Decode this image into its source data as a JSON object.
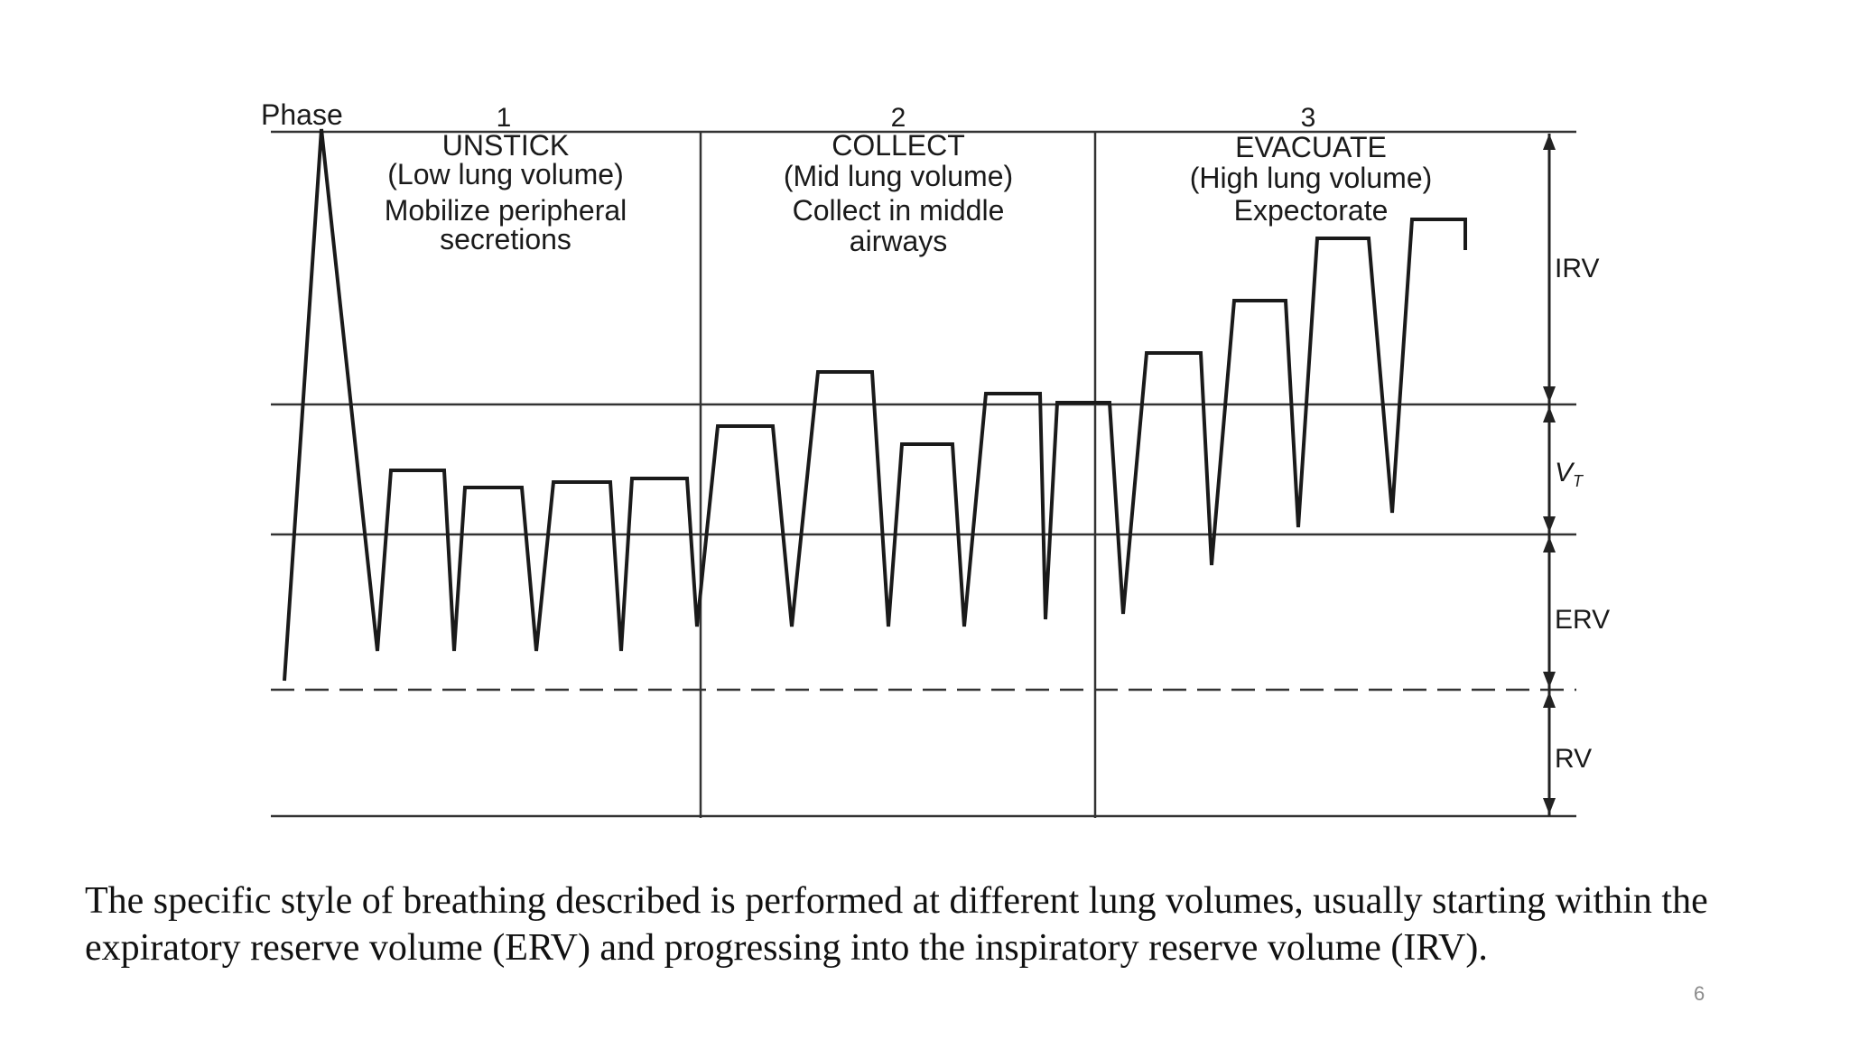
{
  "diagram": {
    "phase_label": "Phase",
    "phases": [
      {
        "number": "1",
        "name": "UNSTICK",
        "volume": "(Low lung volume)",
        "action_line1": "Mobilize peripheral",
        "action_line2": "secretions"
      },
      {
        "number": "2",
        "name": "COLLECT",
        "volume": "(Mid lung volume)",
        "action_line1": "Collect in middle",
        "action_line2": "airways"
      },
      {
        "number": "3",
        "name": "EVACUATE",
        "volume": "(High lung volume)",
        "action_line1": "Expectorate",
        "action_line2": ""
      }
    ],
    "volume_labels": {
      "irv": "IRV",
      "vt": "V",
      "vt_sub": "T",
      "erv": "ERV",
      "rv": "RV"
    },
    "colors": {
      "line": "#1a1a1a",
      "grid": "#333333"
    }
  },
  "caption": "The specific style of breathing described is performed at different lung volumes, usually starting within the expiratory reserve volume (ERV) and progressing into the inspiratory reserve volume (IRV).",
  "page_number": "6"
}
